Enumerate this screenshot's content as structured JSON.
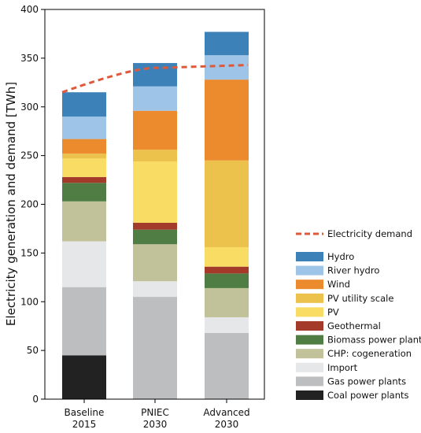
{
  "chart_data": {
    "type": "bar",
    "stacked": true,
    "ylabel": "Electricity generation and demand [TWh]",
    "ylim": [
      0,
      400
    ],
    "yticks": [
      0,
      50,
      100,
      150,
      200,
      250,
      300,
      350,
      400
    ],
    "grid": false,
    "legend_position": "right",
    "categories": [
      [
        "Baseline",
        "2015"
      ],
      [
        "PNIEC",
        "2030"
      ],
      [
        "Advanced",
        "2030"
      ]
    ],
    "series": [
      {
        "name": "Coal power plants",
        "color": "#222222",
        "values": [
          45,
          0,
          0
        ]
      },
      {
        "name": "Gas power plants",
        "color": "#bdbec0",
        "values": [
          70,
          105,
          68
        ]
      },
      {
        "name": "Import",
        "color": "#e6e7e8",
        "values": [
          47,
          16,
          16
        ]
      },
      {
        "name": "CHP: cogeneration",
        "color": "#c2c29a",
        "values": [
          41,
          38,
          30
        ]
      },
      {
        "name": "Biomass power plants",
        "color": "#4f7d43",
        "values": [
          19,
          15,
          15
        ]
      },
      {
        "name": "Geothermal",
        "color": "#a33a2a",
        "values": [
          6,
          7,
          7
        ]
      },
      {
        "name": "PV",
        "color": "#f8dc64",
        "values": [
          19,
          63,
          20
        ]
      },
      {
        "name": "PV utility scale",
        "color": "#ecc24c",
        "values": [
          5,
          12,
          89
        ]
      },
      {
        "name": "Wind",
        "color": "#ec8a2e",
        "values": [
          15,
          40,
          83
        ]
      },
      {
        "name": "River hydro",
        "color": "#9ec5e8",
        "values": [
          23,
          25,
          25
        ]
      },
      {
        "name": "Hydro",
        "color": "#3c82b8",
        "values": [
          25,
          24,
          24
        ]
      }
    ],
    "line": {
      "name": "Electricity demand",
      "color": "#e0583a",
      "style": "dashed",
      "values": [
        315,
        340,
        343
      ]
    }
  }
}
